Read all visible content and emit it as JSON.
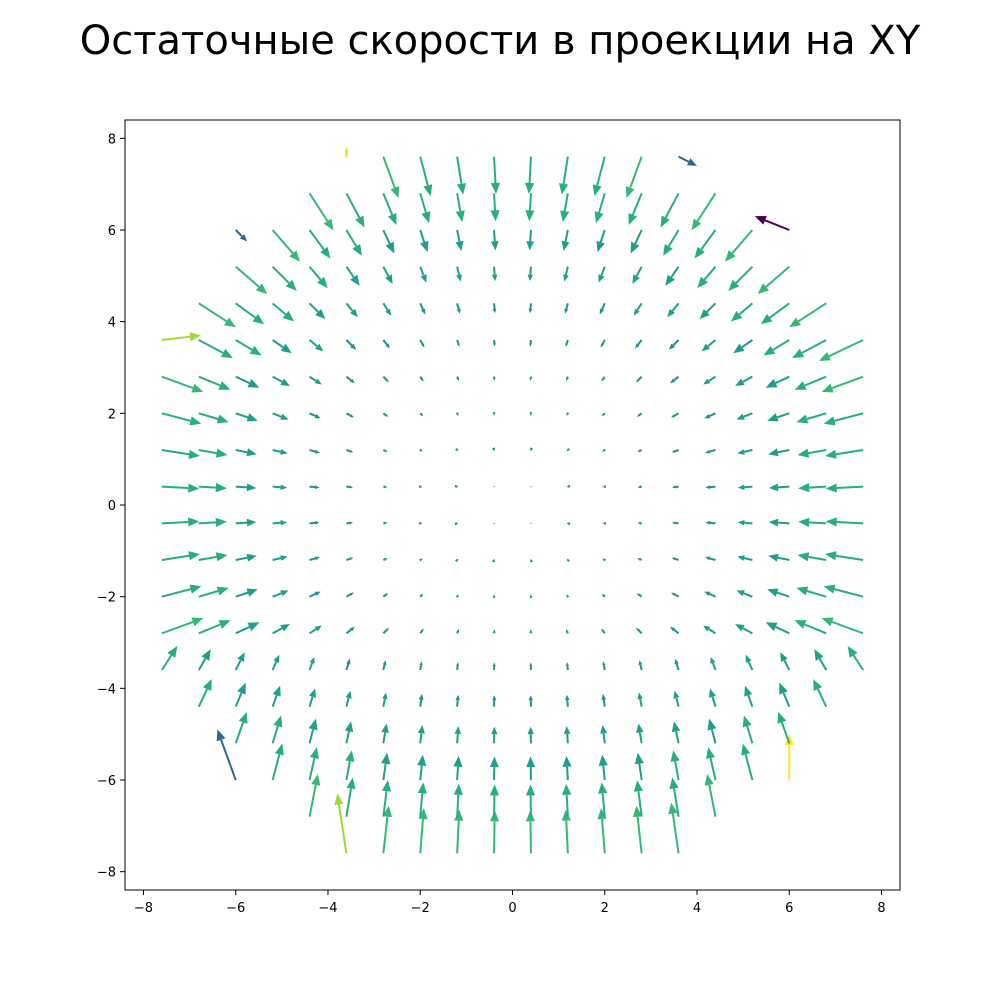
{
  "chart_data": {
    "type": "quiver",
    "title": "Остаточные скорости в проекции на XY",
    "xlabel": "",
    "ylabel": "",
    "xlim": [
      -8.4,
      8.4
    ],
    "ylim": [
      -8.4,
      8.4
    ],
    "xticks": [
      -8,
      -6,
      -4,
      -2,
      0,
      2,
      4,
      6,
      8
    ],
    "yticks": [
      -8,
      -6,
      -4,
      -2,
      0,
      2,
      4,
      6,
      8
    ],
    "xtick_labels": [
      "−8",
      "−6",
      "−4",
      "−2",
      "0",
      "2",
      "4",
      "6",
      "8"
    ],
    "ytick_labels": [
      "−8",
      "−6",
      "−4",
      "−2",
      "0",
      "2",
      "4",
      "6",
      "8"
    ],
    "grid": false,
    "colormap": "viridis",
    "field": "radially inward residual velocity; magnitude grows with distance from the center",
    "outliers": [
      {
        "x": 6.0,
        "y": 6.0,
        "u": -0.75,
        "v": 0.3,
        "color": "#440154"
      },
      {
        "x": 3.6,
        "y": 7.6,
        "u": 0.4,
        "v": -0.2,
        "color": "#31688e"
      },
      {
        "x": -6.0,
        "y": 6.0,
        "u": 0.25,
        "v": -0.25,
        "color": "#31688e"
      },
      {
        "x": -6.0,
        "y": -6.0,
        "u": -0.4,
        "v": 1.1,
        "color": "#31688e"
      },
      {
        "x": 6.0,
        "y": -6.0,
        "u": 0.0,
        "v": 1.0,
        "color": "#fde725"
      },
      {
        "x": -3.6,
        "y": -7.6,
        "u": -0.2,
        "v": 1.3,
        "color": "#a0da39"
      },
      {
        "x": -7.6,
        "y": 3.6,
        "u": 0.85,
        "v": 0.1,
        "color": "#a0da39"
      },
      {
        "x": -3.6,
        "y": 7.6,
        "u": 0.0,
        "v": 0.2,
        "color": "#d8e219"
      }
    ]
  }
}
